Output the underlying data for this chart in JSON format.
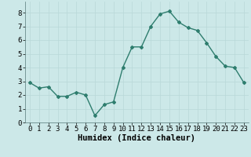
{
  "x": [
    0,
    1,
    2,
    3,
    4,
    5,
    6,
    7,
    8,
    9,
    10,
    11,
    12,
    13,
    14,
    15,
    16,
    17,
    18,
    19,
    20,
    21,
    22,
    23
  ],
  "y": [
    2.9,
    2.5,
    2.6,
    1.9,
    1.9,
    2.2,
    2.0,
    0.5,
    1.3,
    1.5,
    4.0,
    5.5,
    5.5,
    7.0,
    7.9,
    8.1,
    7.3,
    6.9,
    6.7,
    5.8,
    4.8,
    4.1,
    4.0,
    2.9
  ],
  "line_color": "#2e7d6e",
  "bg_color": "#cce8e8",
  "grid_color": "#b8d8d8",
  "xlabel": "Humidex (Indice chaleur)",
  "xlabel_fontsize": 7.5,
  "xlim": [
    -0.5,
    23.5
  ],
  "ylim": [
    0,
    8.8
  ],
  "yticks": [
    0,
    1,
    2,
    3,
    4,
    5,
    6,
    7,
    8
  ],
  "xticks": [
    0,
    1,
    2,
    3,
    4,
    5,
    6,
    7,
    8,
    9,
    10,
    11,
    12,
    13,
    14,
    15,
    16,
    17,
    18,
    19,
    20,
    21,
    22,
    23
  ],
  "tick_fontsize": 6.5,
  "marker": "D",
  "marker_size": 2.0,
  "line_width": 1.0
}
